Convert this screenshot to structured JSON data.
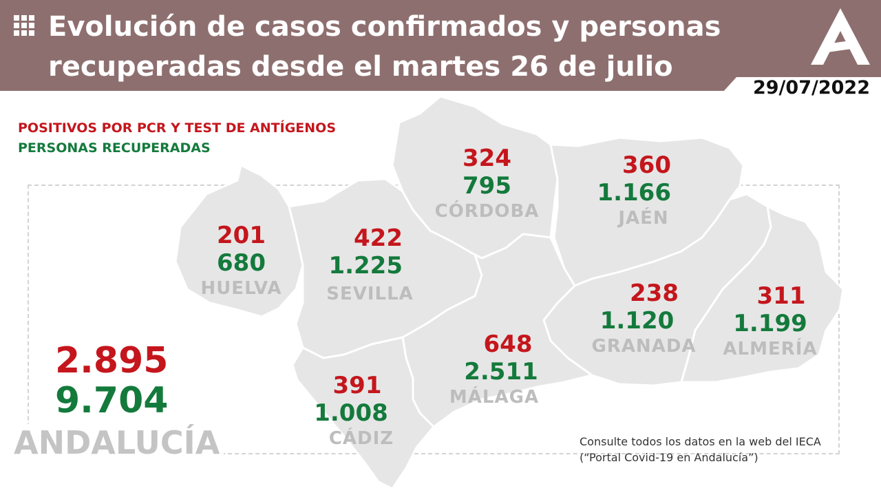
{
  "header": {
    "title": "Evolución de casos confirmados y personas recuperadas desde el martes 26 de julio",
    "date": "29/07/2022"
  },
  "legend": {
    "positives": "POSITIVOS POR PCR Y TEST DE ANTÍGENOS",
    "recovered": "PERSONAS RECUPERADAS"
  },
  "provinces": {
    "huelva": {
      "name": "HUELVA",
      "positives": "201",
      "recovered": "680"
    },
    "sevilla": {
      "name": "SEVILLA",
      "positives": "422",
      "recovered": "1.225"
    },
    "cordoba": {
      "name": "CÓRDOBA",
      "positives": "324",
      "recovered": "795"
    },
    "jaen": {
      "name": "JAÉN",
      "positives": "360",
      "recovered": "1.166"
    },
    "granada": {
      "name": "GRANADA",
      "positives": "238",
      "recovered": "1.120"
    },
    "almeria": {
      "name": "ALMERÍA",
      "positives": "311",
      "recovered": "1.199"
    },
    "malaga": {
      "name": "MÁLAGA",
      "positives": "648",
      "recovered": "2.511"
    },
    "cadiz": {
      "name": "CÁDIZ",
      "positives": "391",
      "recovered": "1.008"
    }
  },
  "andalucia": {
    "name": "ANDALUCÍA",
    "positives": "2.895",
    "recovered": "9.704"
  },
  "footer": {
    "note": "Consulte todos los datos en la web del IECA (“Portal Covid-19 en Andalucía”)"
  },
  "colors": {
    "header": "#8e6f6f",
    "positives": "#c4161c",
    "recovered": "#147a3c",
    "map": "#e6e6e6",
    "province_name": "#bdbdbd"
  },
  "icons": [
    "grid-icon",
    "junta-andalucia-logo"
  ]
}
